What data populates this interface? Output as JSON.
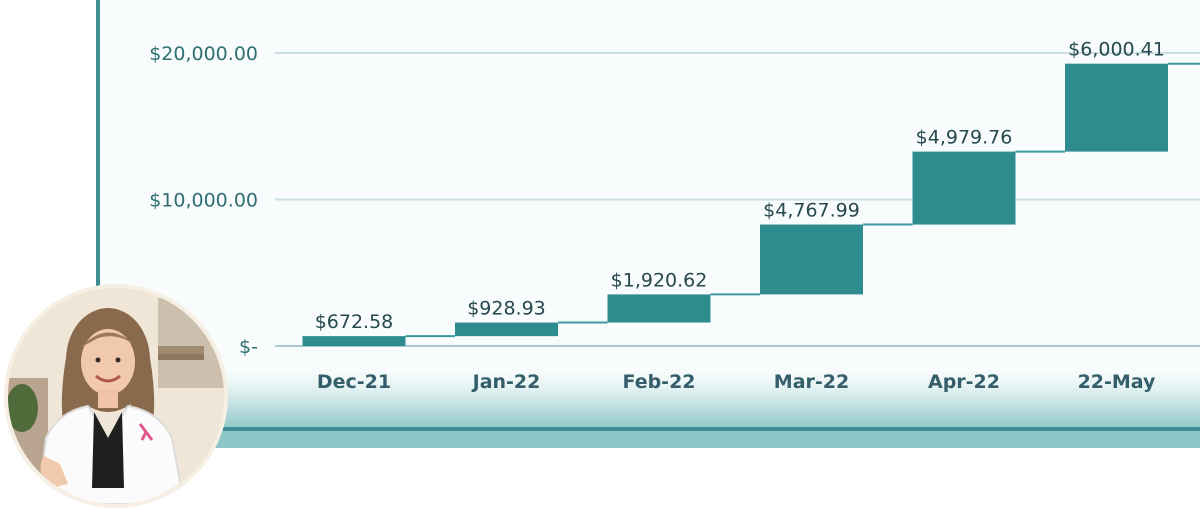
{
  "colors": {
    "bar": "#2e8b8e",
    "connector": "#3a9aa0",
    "gridline": "#c9dfe3",
    "axis_text": "#2f6f72",
    "frame": "#3d8d92",
    "band": "#9fd2d2"
  },
  "icons": {
    "avatar": "person-photo-icon"
  },
  "chart_data": {
    "type": "waterfall",
    "title": "",
    "xlabel": "",
    "ylabel": "",
    "ylim": [
      0,
      23000
    ],
    "y_ticks": [
      {
        "value": 0,
        "label": "$-"
      },
      {
        "value": 10000,
        "label": "$10,000.00"
      },
      {
        "value": 20000,
        "label": "$20,000.00"
      }
    ],
    "categories": [
      "Dec-21",
      "Jan-22",
      "Feb-22",
      "Mar-22",
      "Apr-22",
      "22-May"
    ],
    "values": [
      672.58,
      928.93,
      1920.62,
      4767.99,
      4979.76,
      6000.41
    ],
    "data_labels": [
      "$672.58",
      "$928.93",
      "$1,920.62",
      "$4,767.99",
      "$4,979.76",
      "$6,000.41"
    ],
    "grid": true,
    "legend": "none"
  }
}
